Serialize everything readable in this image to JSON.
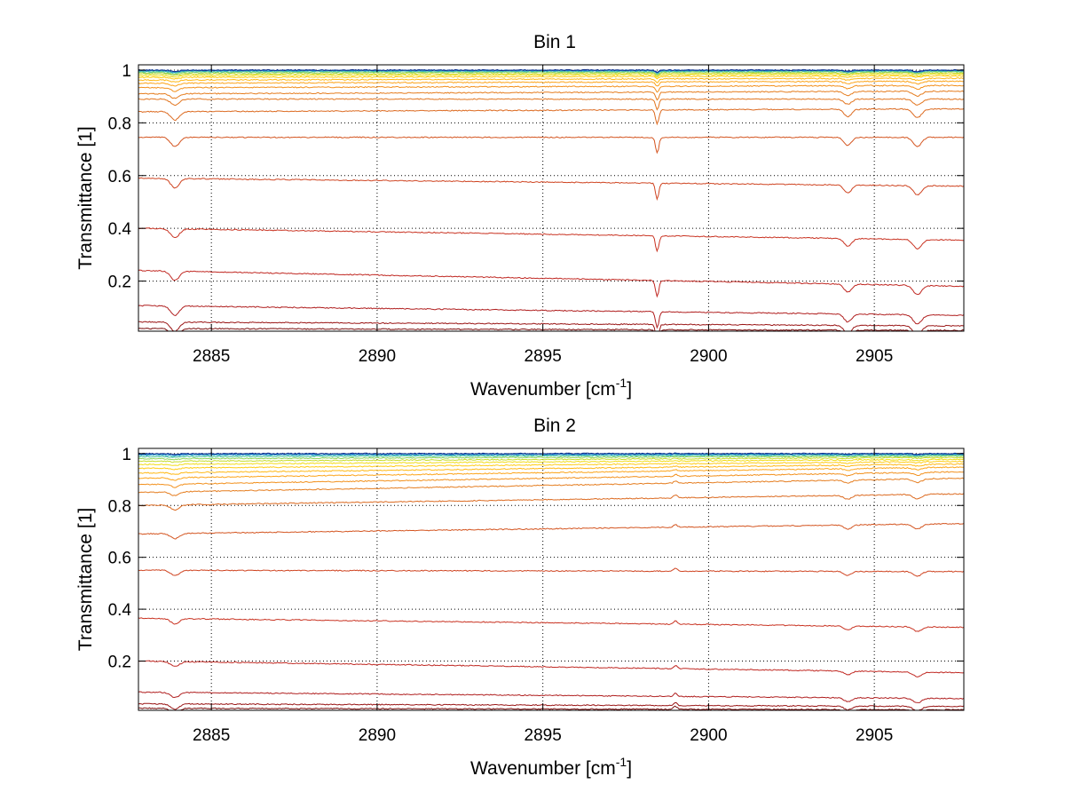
{
  "chart_data": [
    {
      "type": "line",
      "title": "Bin 1",
      "xlabel": "Wavenumber [cm",
      "xlabel_sup": "-1",
      "xlabel_end": "]",
      "ylabel": "Transmittance [1]",
      "xlim": [
        2882.8,
        2907.7
      ],
      "ylim": [
        0.01,
        1.02
      ],
      "xticks": [
        2885,
        2890,
        2895,
        2900,
        2905
      ],
      "xtick_labels": [
        "2885",
        "2890",
        "2895",
        "2900",
        "2905"
      ],
      "yticks": [
        0.2,
        0.4,
        0.6,
        0.8,
        1
      ],
      "ytick_labels": [
        "0.2",
        "0.4",
        "0.6",
        "0.8",
        "1"
      ],
      "grid": "dotted",
      "features": [
        {
          "x": 2883.9,
          "w": 0.18,
          "depth": 0.035
        },
        {
          "x": 2898.45,
          "w": 0.07,
          "depth": 0.06
        },
        {
          "x": 2904.2,
          "w": 0.16,
          "depth": 0.03
        },
        {
          "x": 2906.3,
          "w": 0.18,
          "depth": 0.035
        }
      ],
      "series": [
        {
          "values": [
            1.0,
            1.0
          ],
          "color": "#0d2f8a"
        },
        {
          "values": [
            0.999,
            0.999
          ],
          "color": "#1f6fd0"
        },
        {
          "values": [
            0.997,
            0.998
          ],
          "color": "#2aa7c7"
        },
        {
          "values": [
            0.994,
            0.996
          ],
          "color": "#4cc59a"
        },
        {
          "values": [
            0.99,
            0.993
          ],
          "color": "#8ed35a"
        },
        {
          "values": [
            0.985,
            0.989
          ],
          "color": "#c7dc2e"
        },
        {
          "values": [
            0.979,
            0.984
          ],
          "color": "#f2dc16"
        },
        {
          "values": [
            0.972,
            0.978
          ],
          "color": "#ffcc14"
        },
        {
          "values": [
            0.962,
            0.969
          ],
          "color": "#ffb814"
        },
        {
          "values": [
            0.95,
            0.958
          ],
          "color": "#fca41a"
        },
        {
          "values": [
            0.933,
            0.942
          ],
          "color": "#f2901c"
        },
        {
          "values": [
            0.91,
            0.92
          ],
          "color": "#e57d1f"
        },
        {
          "values": [
            0.89,
            0.89
          ],
          "color": "#e2751f"
        },
        {
          "values": [
            0.842,
            0.853
          ],
          "color": "#dc6a20"
        },
        {
          "values": [
            0.745,
            0.745
          ],
          "color": "#d45520"
        },
        {
          "values": [
            0.59,
            0.56
          ],
          "color": "#cf4421"
        },
        {
          "values": [
            0.4,
            0.355
          ],
          "color": "#c93322"
        },
        {
          "values": [
            0.24,
            0.18
          ],
          "color": "#c02822"
        },
        {
          "values": [
            0.107,
            0.07
          ],
          "color": "#b01f1f"
        },
        {
          "values": [
            0.045,
            0.03
          ],
          "color": "#9a1616"
        },
        {
          "values": [
            0.02,
            0.013
          ],
          "color": "#7a0d0d"
        }
      ]
    },
    {
      "type": "line",
      "title": "Bin 2",
      "xlabel": "Wavenumber [cm",
      "xlabel_sup": "-1",
      "xlabel_end": "]",
      "ylabel": "Transmittance [1]",
      "xlim": [
        2882.8,
        2907.7
      ],
      "ylim": [
        0.01,
        1.02
      ],
      "xticks": [
        2885,
        2890,
        2895,
        2900,
        2905
      ],
      "xtick_labels": [
        "2885",
        "2890",
        "2895",
        "2900",
        "2905"
      ],
      "yticks": [
        0.2,
        0.4,
        0.6,
        0.8,
        1
      ],
      "ytick_labels": [
        "0.2",
        "0.4",
        "0.6",
        "0.8",
        "1"
      ],
      "grid": "dotted",
      "features": [
        {
          "x": 2883.9,
          "w": 0.18,
          "depth": 0.02
        },
        {
          "x": 2899.0,
          "w": 0.07,
          "depth": -0.012
        },
        {
          "x": 2904.2,
          "w": 0.16,
          "depth": 0.015
        },
        {
          "x": 2906.3,
          "w": 0.18,
          "depth": 0.018
        }
      ],
      "series": [
        {
          "values": [
            1.0,
            1.0
          ],
          "color": "#0d2f8a"
        },
        {
          "values": [
            0.998,
            0.999
          ],
          "color": "#1f6fd0"
        },
        {
          "values": [
            0.994,
            0.997
          ],
          "color": "#2aa7c7"
        },
        {
          "values": [
            0.988,
            0.994
          ],
          "color": "#4cc59a"
        },
        {
          "values": [
            0.98,
            0.99
          ],
          "color": "#8ed35a"
        },
        {
          "values": [
            0.97,
            0.985
          ],
          "color": "#c7dc2e"
        },
        {
          "values": [
            0.958,
            0.978
          ],
          "color": "#f2dc16"
        },
        {
          "values": [
            0.943,
            0.97
          ],
          "color": "#ffcc14"
        },
        {
          "values": [
            0.925,
            0.96
          ],
          "color": "#ffb814"
        },
        {
          "values": [
            0.905,
            0.948
          ],
          "color": "#fca41a"
        },
        {
          "values": [
            0.88,
            0.93
          ],
          "color": "#f2901c"
        },
        {
          "values": [
            0.85,
            0.905
          ],
          "color": "#e57d1f"
        },
        {
          "values": [
            0.8,
            0.845
          ],
          "color": "#dc6a20"
        },
        {
          "values": [
            0.69,
            0.73
          ],
          "color": "#d45520"
        },
        {
          "values": [
            0.55,
            0.545
          ],
          "color": "#cf4421"
        },
        {
          "values": [
            0.365,
            0.33
          ],
          "color": "#c93322"
        },
        {
          "values": [
            0.2,
            0.155
          ],
          "color": "#c02822"
        },
        {
          "values": [
            0.08,
            0.055
          ],
          "color": "#b01f1f"
        },
        {
          "values": [
            0.035,
            0.025
          ],
          "color": "#9a1616"
        },
        {
          "values": [
            0.018,
            0.012
          ],
          "color": "#7a0d0d"
        }
      ]
    }
  ]
}
